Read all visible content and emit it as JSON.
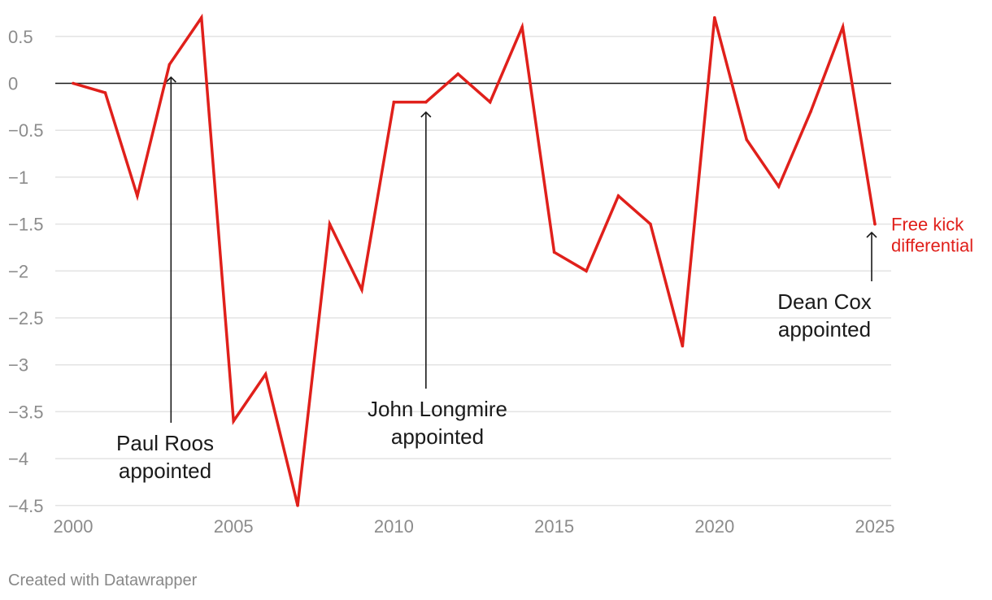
{
  "chart_data": {
    "type": "line",
    "title": "",
    "xlabel": "",
    "ylabel": "",
    "x": [
      2000,
      2001,
      2002,
      2003,
      2004,
      2005,
      2006,
      2007,
      2008,
      2009,
      2010,
      2011,
      2012,
      2013,
      2014,
      2015,
      2016,
      2017,
      2018,
      2019,
      2020,
      2021,
      2022,
      2023,
      2024,
      2025
    ],
    "series": [
      {
        "name": "Free kick differential",
        "color": "#e0201b",
        "values": [
          0,
          -0.1,
          -1.2,
          0.2,
          0.7,
          -3.6,
          -3.1,
          -4.5,
          -1.5,
          -2.2,
          -0.2,
          -0.2,
          0.1,
          -0.2,
          0.6,
          -1.8,
          -2.0,
          -1.2,
          -1.5,
          -2.8,
          0.7,
          -0.6,
          -1.1,
          -0.3,
          0.6,
          -1.5
        ]
      }
    ],
    "xlim": [
      2000,
      2025
    ],
    "ylim": [
      -4.5,
      0.7
    ],
    "x_ticks": [
      {
        "value": 2000,
        "label": "2000"
      },
      {
        "value": 2005,
        "label": "2005"
      },
      {
        "value": 2010,
        "label": "2010"
      },
      {
        "value": 2015,
        "label": "2015"
      },
      {
        "value": 2020,
        "label": "2020"
      },
      {
        "value": 2025,
        "label": "2025"
      }
    ],
    "y_ticks": [
      {
        "value": 0.5,
        "label": "0.5"
      },
      {
        "value": 0,
        "label": "0"
      },
      {
        "value": -0.5,
        "label": "−0.5"
      },
      {
        "value": -1,
        "label": "−1"
      },
      {
        "value": -1.5,
        "label": "−1.5"
      },
      {
        "value": -2,
        "label": "−2"
      },
      {
        "value": -2.5,
        "label": "−2.5"
      },
      {
        "value": -3,
        "label": "−3"
      },
      {
        "value": -3.5,
        "label": "−3.5"
      },
      {
        "value": -4,
        "label": "−4"
      },
      {
        "value": -4.5,
        "label": "−4.5"
      }
    ],
    "grid": true,
    "zero_line": true,
    "annotations": [
      {
        "x": 2003,
        "lines": [
          "Paul Roos",
          "appointed"
        ]
      },
      {
        "x": 2011,
        "lines": [
          "John Longmire",
          "appointed"
        ]
      },
      {
        "x": 2025,
        "lines": [
          "Dean Cox",
          "appointed"
        ]
      }
    ]
  },
  "footer": {
    "credit": "Created with Datawrapper"
  },
  "colors": {
    "line": "#e0201b",
    "grid": "#e3e3e3",
    "zero": "#1a1a1a",
    "tick": "#8c8c8c"
  }
}
